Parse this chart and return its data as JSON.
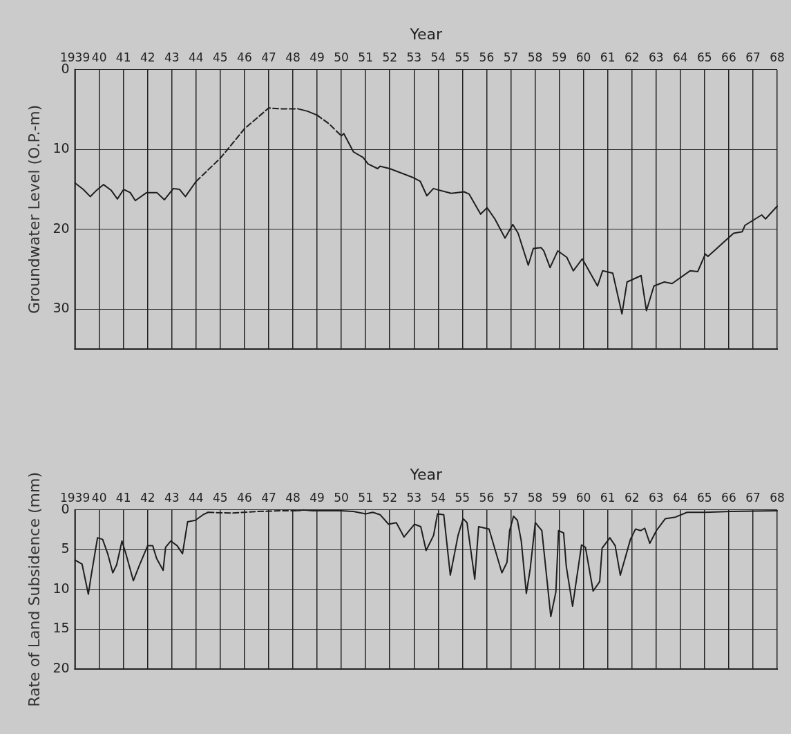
{
  "chart_data": [
    {
      "type": "line",
      "xlabel": "Year",
      "ylabel": "Groundwater Level (O.P.-m)",
      "xlim": [
        1939,
        1968
      ],
      "xticks": [
        {
          "value": 1939,
          "label": "1939"
        },
        {
          "value": 1940,
          "label": "40"
        },
        {
          "value": 1941,
          "label": "41"
        },
        {
          "value": 1942,
          "label": "42"
        },
        {
          "value": 1943,
          "label": "43"
        },
        {
          "value": 1944,
          "label": "44"
        },
        {
          "value": 1945,
          "label": "45"
        },
        {
          "value": 1946,
          "label": "46"
        },
        {
          "value": 1947,
          "label": "47"
        },
        {
          "value": 1948,
          "label": "48"
        },
        {
          "value": 1949,
          "label": "49"
        },
        {
          "value": 1950,
          "label": "50"
        },
        {
          "value": 1951,
          "label": "51"
        },
        {
          "value": 1952,
          "label": "52"
        },
        {
          "value": 1953,
          "label": "53"
        },
        {
          "value": 1954,
          "label": "54"
        },
        {
          "value": 1955,
          "label": "55"
        },
        {
          "value": 1956,
          "label": "56"
        },
        {
          "value": 1957,
          "label": "57"
        },
        {
          "value": 1958,
          "label": "58"
        },
        {
          "value": 1959,
          "label": "59"
        },
        {
          "value": 1960,
          "label": "60"
        },
        {
          "value": 1961,
          "label": "61"
        },
        {
          "value": 1962,
          "label": "62"
        },
        {
          "value": 1963,
          "label": "63"
        },
        {
          "value": 1964,
          "label": "64"
        },
        {
          "value": 1965,
          "label": "65"
        },
        {
          "value": 1966,
          "label": "66"
        },
        {
          "value": 1967,
          "label": "67"
        },
        {
          "value": 1968,
          "label": "68"
        }
      ],
      "ylim": [
        35,
        0
      ],
      "yticks": [
        0,
        10,
        20,
        30
      ],
      "grid": true,
      "legend": false,
      "series": [
        {
          "color": "#1e1e1e",
          "line_style": "solid",
          "x": [
            1939,
            1939.34,
            1939.63,
            1939.86,
            1940.18,
            1940.49,
            1940.75,
            1941.01,
            1941.28,
            1941.49,
            1941.96,
            1942.38,
            1942.69,
            1943.06,
            1943.32,
            1943.56,
            1944
          ],
          "values": [
            14.2,
            15.0,
            15.9,
            15.2,
            14.4,
            15.1,
            16.2,
            15.0,
            15.4,
            16.4,
            15.4,
            15.4,
            16.3,
            14.9,
            15.0,
            15.9,
            14.0
          ]
        },
        {
          "color": "#1e1e1e",
          "line_style": "solid",
          "x": [
            1948.2,
            1948.6,
            1949
          ],
          "values": [
            4.9,
            5.2,
            5.7
          ]
        },
        {
          "color": "#1e1e1e",
          "line_style": "solid",
          "x": [
            1950,
            1950.1,
            1950.5,
            1950.9,
            1951.1,
            1951.5,
            1951.6,
            1952,
            1952.95,
            1953.26,
            1953.53,
            1953.8,
            1954.54,
            1955.07,
            1955.28,
            1955.75,
            1956.02,
            1956.34,
            1956.76,
            1957.08,
            1957.3,
            1957.72,
            1957.93,
            1958.25,
            1958.36,
            1958.62,
            1958.94,
            1959.31,
            1959.58,
            1959.95,
            1960.58,
            1960.79,
            1961.21,
            1961.59,
            1961.8,
            1962.38,
            1962.6,
            1962.91,
            1963.34,
            1963.66,
            1964.4,
            1964.72,
            1965.03,
            1965.14,
            1966.2,
            1966.56,
            1966.67,
            1967.36,
            1967.52,
            1968
          ],
          "values": [
            8.3,
            8.0,
            10.3,
            11.0,
            11.8,
            12.4,
            12.1,
            12.4,
            13.5,
            14.0,
            15.8,
            14.9,
            15.5,
            15.3,
            15.6,
            18.1,
            17.3,
            18.7,
            21.1,
            19.4,
            20.5,
            24.5,
            22.4,
            22.3,
            22.7,
            24.8,
            22.7,
            23.5,
            25.2,
            23.7,
            27.1,
            25.2,
            25.5,
            30.6,
            26.6,
            25.8,
            30.2,
            27.1,
            26.6,
            26.8,
            25.2,
            25.3,
            23.1,
            23.4,
            20.5,
            20.3,
            19.5,
            18.2,
            18.7,
            17.1
          ]
        },
        {
          "color": "#1e1e1e",
          "line_style": "dashed",
          "x": [
            1944,
            1945,
            1946,
            1947,
            1947.5,
            1948.2
          ],
          "values": [
            14.0,
            11.1,
            7.4,
            4.8,
            4.9,
            4.9
          ]
        },
        {
          "color": "#1e1e1e",
          "line_style": "dashed",
          "x": [
            1949,
            1949.5,
            1950
          ],
          "values": [
            5.7,
            6.8,
            8.3
          ]
        }
      ]
    },
    {
      "type": "line",
      "xlabel": "Year",
      "ylabel": "Rate of Land Subsidence (mm)",
      "xlim": [
        1939,
        1968
      ],
      "xticks": [
        {
          "value": 1939,
          "label": "1939"
        },
        {
          "value": 1940,
          "label": "40"
        },
        {
          "value": 1941,
          "label": "41"
        },
        {
          "value": 1942,
          "label": "42"
        },
        {
          "value": 1943,
          "label": "43"
        },
        {
          "value": 1944,
          "label": "44"
        },
        {
          "value": 1945,
          "label": "45"
        },
        {
          "value": 1946,
          "label": "46"
        },
        {
          "value": 1947,
          "label": "47"
        },
        {
          "value": 1948,
          "label": "48"
        },
        {
          "value": 1949,
          "label": "49"
        },
        {
          "value": 1950,
          "label": "50"
        },
        {
          "value": 1951,
          "label": "51"
        },
        {
          "value": 1952,
          "label": "52"
        },
        {
          "value": 1953,
          "label": "53"
        },
        {
          "value": 1954,
          "label": "54"
        },
        {
          "value": 1955,
          "label": "55"
        },
        {
          "value": 1956,
          "label": "56"
        },
        {
          "value": 1957,
          "label": "57"
        },
        {
          "value": 1958,
          "label": "58"
        },
        {
          "value": 1959,
          "label": "59"
        },
        {
          "value": 1960,
          "label": "60"
        },
        {
          "value": 1961,
          "label": "61"
        },
        {
          "value": 1962,
          "label": "62"
        },
        {
          "value": 1963,
          "label": "63"
        },
        {
          "value": 1964,
          "label": "64"
        },
        {
          "value": 1965,
          "label": "65"
        },
        {
          "value": 1966,
          "label": "66"
        },
        {
          "value": 1967,
          "label": "67"
        },
        {
          "value": 1968,
          "label": "68"
        }
      ],
      "ylim": [
        20,
        0
      ],
      "yticks": [
        0,
        5,
        10,
        15,
        20
      ],
      "grid": true,
      "legend": false,
      "series": [
        {
          "color": "#1e1e1e",
          "line_style": "solid",
          "x": [
            1939,
            1939.29,
            1939.55,
            1939.66,
            1939.93,
            1940.14,
            1940.35,
            1940.56,
            1940.72,
            1940.94,
            1941.1,
            1941.41,
            1941.68,
            1942,
            1942.21,
            1942.37,
            1942.64,
            1942.74,
            1942.96,
            1943.22,
            1943.44,
            1943.65,
            1943.97,
            1944.29,
            1944.5
          ],
          "values": [
            6.3,
            6.8,
            10.6,
            8.4,
            3.5,
            3.7,
            5.5,
            7.9,
            6.9,
            3.9,
            5.5,
            8.9,
            6.8,
            4.5,
            4.5,
            6.1,
            7.6,
            4.7,
            3.9,
            4.5,
            5.5,
            1.5,
            1.3,
            0.6,
            0.3
          ]
        },
        {
          "color": "#1e1e1e",
          "line_style": "solid",
          "x": [
            1948.2,
            1948.44,
            1948.8,
            1950,
            1950.5,
            1951,
            1951.3,
            1951.6,
            1951.95,
            1952.27,
            1952.59,
            1953.02,
            1953.28,
            1953.5,
            1953.81,
            1953.97,
            1954.23,
            1954.5,
            1954.82,
            1955.03,
            1955.19,
            1955.51,
            1955.67,
            1956.1,
            1956.63,
            1956.84,
            1956.95,
            1957.11,
            1957.27,
            1957.43,
            1957.64,
            1957.8,
            1958.01,
            1958.28,
            1958.65,
            1958.86,
            1958.97,
            1959.18,
            1959.29,
            1959.55,
            1959.92,
            1960.08,
            1960.4,
            1960.67,
            1960.77,
            1961.09,
            1961.31,
            1961.52,
            1961.94,
            1962.15,
            1962.37,
            1962.53,
            1962.74,
            1963.01,
            1963.38,
            1963.8,
            1964.28,
            1965.02,
            1966.08,
            1968
          ],
          "values": [
            0.1,
            0,
            0.1,
            0.1,
            0.2,
            0.5,
            0.3,
            0.6,
            1.8,
            1.6,
            3.4,
            1.8,
            2.1,
            5.1,
            3.2,
            0.5,
            0.6,
            8.2,
            3.2,
            1.1,
            1.6,
            8.7,
            2.1,
            2.4,
            7.9,
            6.6,
            2.6,
            0.8,
            1.3,
            3.9,
            10.5,
            7.4,
            1.6,
            2.6,
            13.4,
            10.3,
            2.6,
            2.9,
            7.1,
            12.1,
            4.4,
            4.7,
            10.2,
            9.0,
            4.8,
            3.5,
            4.5,
            8.2,
            3.7,
            2.4,
            2.6,
            2.3,
            4.2,
            2.6,
            1.1,
            0.9,
            0.3,
            0.3,
            0.2,
            0.1
          ]
        },
        {
          "color": "#1e1e1e",
          "line_style": "dashed",
          "x": [
            1944.5,
            1945.5,
            1946.5,
            1947.5,
            1948.2
          ],
          "values": [
            0.3,
            0.4,
            0.2,
            0.1,
            0.1
          ]
        }
      ]
    }
  ]
}
